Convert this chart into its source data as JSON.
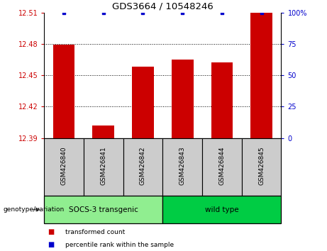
{
  "title": "GDS3664 / 10548246",
  "samples": [
    "GSM426840",
    "GSM426841",
    "GSM426842",
    "GSM426843",
    "GSM426844",
    "GSM426845"
  ],
  "bar_values": [
    12.479,
    12.402,
    12.458,
    12.465,
    12.462,
    12.51
  ],
  "percentile_values": [
    100,
    100,
    100,
    100,
    100,
    100
  ],
  "bar_color": "#cc0000",
  "percentile_color": "#0000cc",
  "ylim_left": [
    12.39,
    12.51
  ],
  "ylim_right": [
    0,
    100
  ],
  "yticks_left": [
    12.39,
    12.42,
    12.45,
    12.48,
    12.51
  ],
  "ytick_labels_left": [
    "12.39",
    "12.42",
    "12.45",
    "12.48",
    "12.51"
  ],
  "yticks_right": [
    0,
    25,
    50,
    75,
    100
  ],
  "ytick_labels_right": [
    "0",
    "25",
    "50",
    "75",
    "100%"
  ],
  "groups": [
    {
      "label": "SOCS-3 transgenic",
      "indices": [
        0,
        1,
        2
      ],
      "color": "#90ee90"
    },
    {
      "label": "wild type",
      "indices": [
        3,
        4,
        5
      ],
      "color": "#00cc44"
    }
  ],
  "genotype_label": "genotype/variation",
  "legend_items": [
    {
      "label": "transformed count",
      "color": "#cc0000"
    },
    {
      "label": "percentile rank within the sample",
      "color": "#0000cc"
    }
  ],
  "sample_box_color": "#cccccc",
  "bar_width": 0.55
}
